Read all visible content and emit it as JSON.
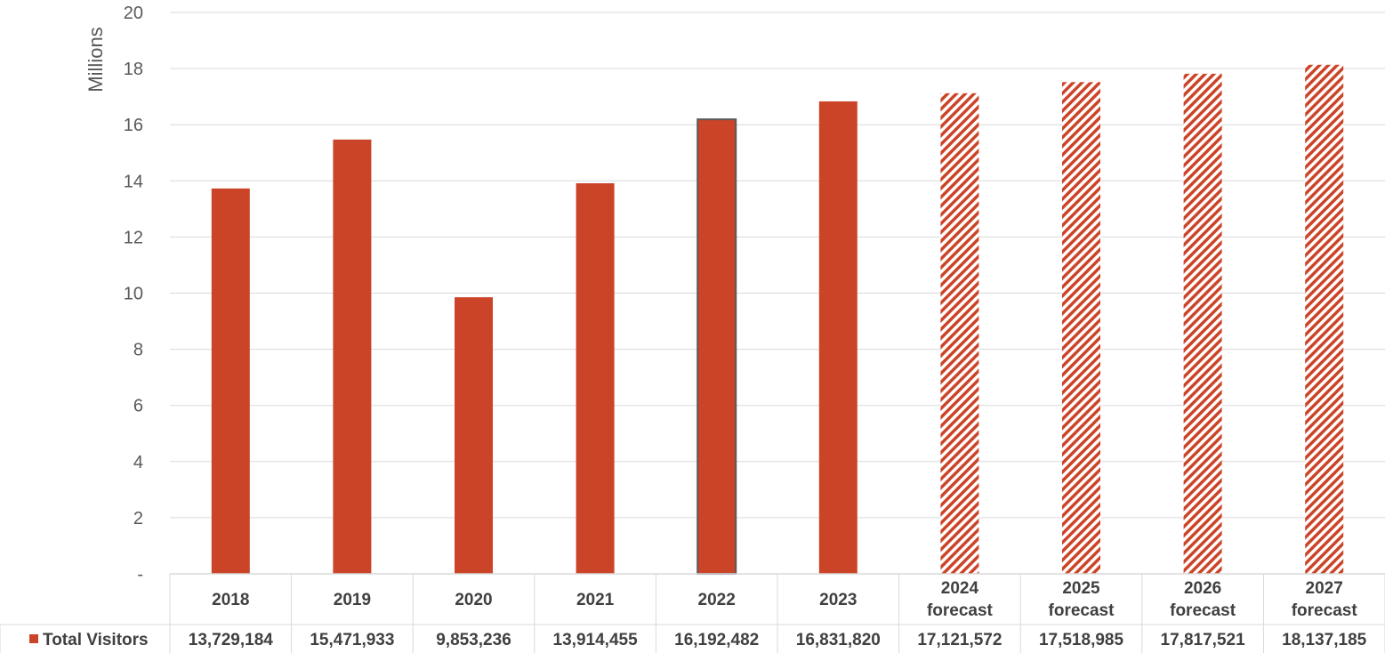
{
  "chart_data": {
    "type": "bar",
    "title": "",
    "ylabel": "Millions",
    "ylim": [
      0,
      20
    ],
    "yticks": [
      "-",
      "2",
      "4",
      "6",
      "8",
      "10",
      "12",
      "14",
      "16",
      "18",
      "20"
    ],
    "categories": [
      [
        "2018"
      ],
      [
        "2019"
      ],
      [
        "2020"
      ],
      [
        "2021"
      ],
      [
        "2022"
      ],
      [
        "2023"
      ],
      [
        "2024",
        "forecast"
      ],
      [
        "2025",
        "forecast"
      ],
      [
        "2026",
        "forecast"
      ],
      [
        "2027",
        "forecast"
      ]
    ],
    "forecast": [
      false,
      false,
      false,
      false,
      false,
      false,
      true,
      true,
      true,
      true
    ],
    "series": [
      {
        "name": "Total Visitors",
        "color": "#cc4428",
        "values": [
          13729184,
          15471933,
          9853236,
          13914455,
          16192482,
          16831820,
          17121572,
          17518985,
          17817521,
          18137185
        ],
        "labels": [
          "13,729,184",
          "15,471,933",
          "9,853,236",
          "13,914,455",
          "16,192,482",
          "16,831,820",
          "17,121,572",
          "17,518,985",
          "17,817,521",
          "18,137,185"
        ]
      }
    ],
    "grid": true,
    "legend": "data-table-left"
  }
}
